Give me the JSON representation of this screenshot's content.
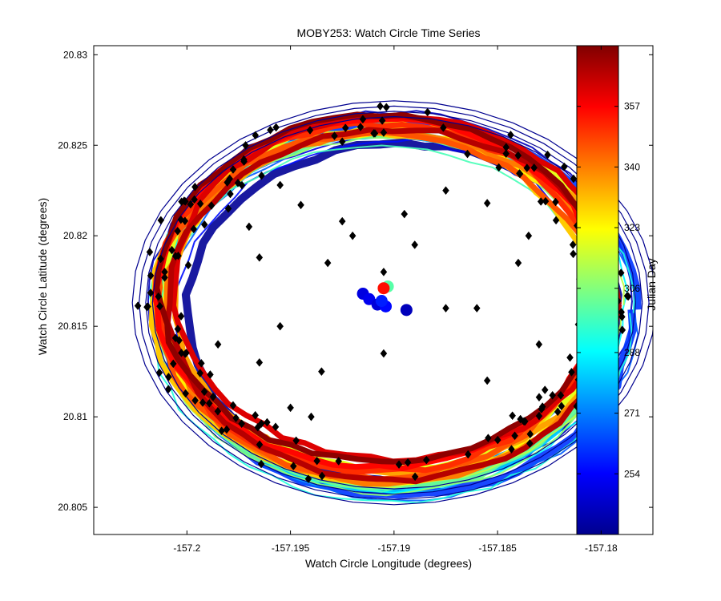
{
  "chart_data": {
    "type": "scatter",
    "title": "MOBY253: Watch Circle Time Series",
    "xlabel": "Watch Circle Longitude (degrees)",
    "ylabel": "Watch Circle Latitude (degrees)",
    "xlim": [
      -157.2045,
      -157.1775
    ],
    "ylim": [
      20.8035,
      20.8305
    ],
    "x_ticks": [
      -157.2,
      -157.195,
      -157.19,
      -157.185,
      -157.18
    ],
    "x_tick_labels": [
      "-157.2",
      "-157.195",
      "-157.19",
      "-157.185",
      "-157.18"
    ],
    "y_ticks": [
      20.805,
      20.81,
      20.815,
      20.82,
      20.825,
      20.83
    ],
    "y_tick_labels": [
      "20.805",
      "20.81",
      "20.815",
      "20.82",
      "20.825",
      "20.83"
    ],
    "grid": false,
    "colorbar": {
      "label": "Julian Day",
      "range": [
        237,
        374
      ],
      "ticks": [
        254,
        271,
        288,
        306,
        323,
        340,
        357
      ],
      "tick_labels": [
        "254",
        "271",
        "288",
        "306",
        "323",
        "340",
        "357"
      ],
      "colormap": "jet",
      "colors": [
        "#00008f",
        "#0000ff",
        "#00ffff",
        "#ffff00",
        "#ff0000",
        "#800000"
      ]
    },
    "watch_circle": {
      "description_of_series": "mooring position trace colored by Julian Day",
      "center": [
        -157.1905,
        20.8166
      ],
      "radius_lon": 0.0108,
      "radius_lat": 0.0097,
      "day_start": 240,
      "day_end": 372
    },
    "center_cluster": [
      {
        "x": -157.1915,
        "y": 20.8168,
        "day": 250
      },
      {
        "x": -157.1912,
        "y": 20.8165,
        "day": 252
      },
      {
        "x": -157.1908,
        "y": 20.8162,
        "day": 249
      },
      {
        "x": -157.1904,
        "y": 20.8161,
        "day": 255
      },
      {
        "x": -157.1906,
        "y": 20.8164,
        "day": 258
      },
      {
        "x": -157.1903,
        "y": 20.8172,
        "day": 300
      },
      {
        "x": -157.1905,
        "y": 20.8171,
        "day": 355
      },
      {
        "x": -157.1894,
        "y": 20.8159,
        "day": 245
      }
    ],
    "outlier_points": {
      "marker": "diamond",
      "color": "#000000",
      "samples": [
        {
          "x": -157.1925,
          "y": 20.8252
        },
        {
          "x": -157.1905,
          "y": 20.8257
        },
        {
          "x": -157.1955,
          "y": 20.8228
        },
        {
          "x": -157.1925,
          "y": 20.8208
        },
        {
          "x": -157.1945,
          "y": 20.8217
        },
        {
          "x": -157.1895,
          "y": 20.8212
        },
        {
          "x": -157.1875,
          "y": 20.8225
        },
        {
          "x": -157.1855,
          "y": 20.8218
        },
        {
          "x": -157.1965,
          "y": 20.8188
        },
        {
          "x": -157.1932,
          "y": 20.8185
        },
        {
          "x": -157.1905,
          "y": 20.818
        },
        {
          "x": -157.1955,
          "y": 20.815
        },
        {
          "x": -157.1965,
          "y": 20.813
        },
        {
          "x": -157.1985,
          "y": 20.814
        },
        {
          "x": -157.1935,
          "y": 20.8125
        },
        {
          "x": -157.1905,
          "y": 20.8135
        },
        {
          "x": -157.1875,
          "y": 20.816
        },
        {
          "x": -157.186,
          "y": 20.816
        },
        {
          "x": -157.1835,
          "y": 20.82
        },
        {
          "x": -157.184,
          "y": 20.8185
        },
        {
          "x": -157.183,
          "y": 20.814
        },
        {
          "x": -157.1855,
          "y": 20.812
        },
        {
          "x": -157.198,
          "y": 20.8215
        },
        {
          "x": -157.197,
          "y": 20.8205
        },
        {
          "x": -157.192,
          "y": 20.82
        },
        {
          "x": -157.189,
          "y": 20.8195
        },
        {
          "x": -157.194,
          "y": 20.81
        },
        {
          "x": -157.195,
          "y": 20.8105
        }
      ]
    }
  }
}
